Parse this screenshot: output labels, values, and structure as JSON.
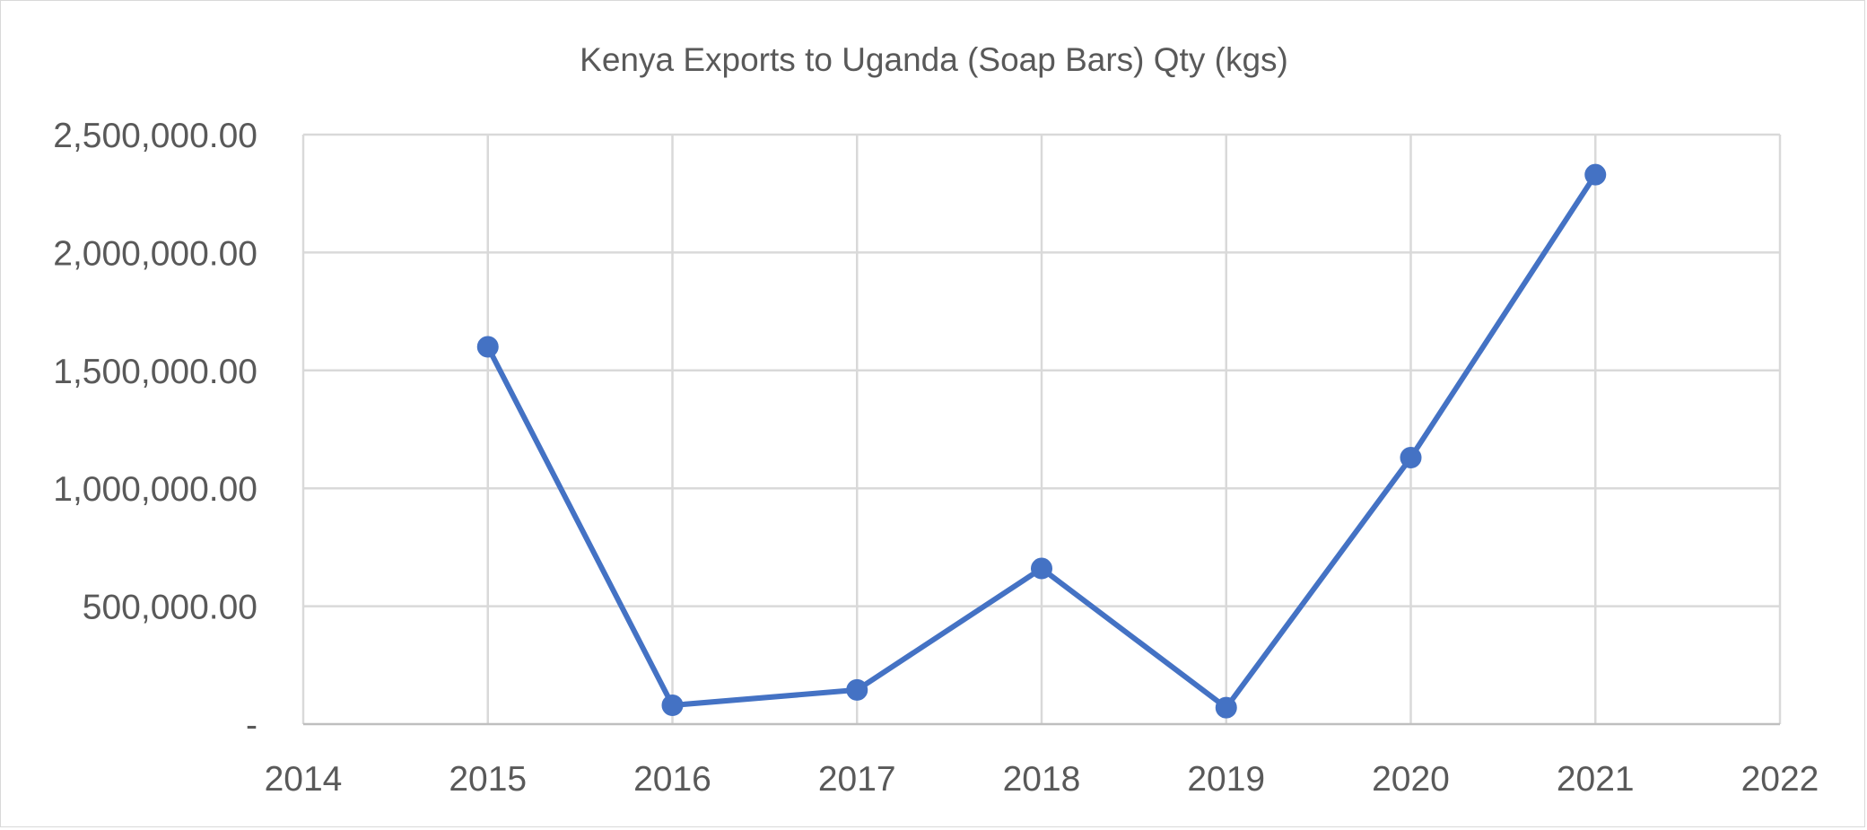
{
  "chart_data": {
    "type": "scatter",
    "title": "Kenya Exports to Uganda (Soap Bars) Qty (kgs)",
    "xlabel": "",
    "ylabel": "",
    "xlim": [
      2014,
      2022
    ],
    "ylim": [
      0,
      2500000
    ],
    "x_ticks": [
      2014,
      2015,
      2016,
      2017,
      2018,
      2019,
      2020,
      2021,
      2022
    ],
    "x_tick_labels": [
      "2014",
      "2015",
      "2016",
      "2017",
      "2018",
      "2019",
      "2020",
      "2021",
      "2022"
    ],
    "y_ticks": [
      0,
      500000,
      1000000,
      1500000,
      2000000,
      2500000
    ],
    "y_tick_labels": [
      "-",
      "500,000.00",
      "1,000,000.00",
      "1,500,000.00",
      "2,000,000.00",
      "2,500,000.00"
    ],
    "grid": true,
    "legend": "none",
    "series": [
      {
        "color": "#4472c4",
        "style": "line-with-markers",
        "x": [
          2015,
          2016,
          2017,
          2018,
          2019,
          2020,
          2021
        ],
        "y": [
          1600000,
          80000,
          145000,
          660000,
          70000,
          1130000,
          2330000
        ]
      }
    ]
  }
}
